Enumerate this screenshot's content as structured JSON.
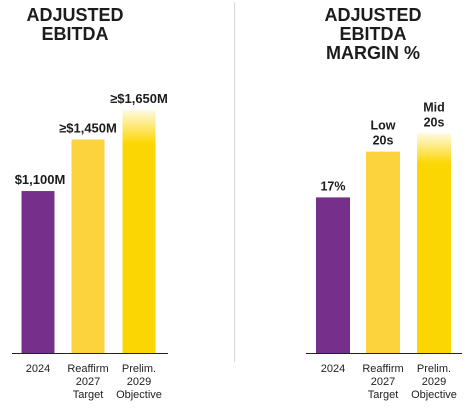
{
  "panels": [
    {
      "title_line1": "ADJUSTED",
      "title_line2": "EBITDA",
      "title_line3": ""
    },
    {
      "title_line1": "ADJUSTED",
      "title_line2": "EBITDA",
      "title_line3": "MARGIN %"
    }
  ],
  "colors": {
    "actual": "#76308b",
    "target": "#fdd33d",
    "objective": "#fcd600",
    "axis": "#222222"
  },
  "chart_data": [
    {
      "type": "bar",
      "title": "ADJUSTED EBITDA",
      "categories": [
        [
          "2024"
        ],
        [
          "Reaffirm",
          "2027",
          "Target"
        ],
        [
          "Prelim.",
          "2029",
          "Objective"
        ]
      ],
      "values": [
        1100,
        1450,
        1650
      ],
      "unit": "$M",
      "data_labels": [
        [
          "$1,100M"
        ],
        [
          "≥$1,450M"
        ],
        [
          "≥$1,650M"
        ]
      ],
      "open_ended": [
        false,
        false,
        true
      ],
      "ylim": [
        0,
        1800
      ],
      "grid": false,
      "legend": "none"
    },
    {
      "type": "bar",
      "title": "ADJUSTED EBITDA MARGIN %",
      "categories": [
        [
          "2024"
        ],
        [
          "Reaffirm",
          "2027",
          "Target"
        ],
        [
          "Prelim.",
          "2029",
          "Objective"
        ]
      ],
      "values": [
        17,
        22,
        24
      ],
      "unit": "%",
      "data_labels": [
        [
          "17%"
        ],
        [
          "Low",
          "20s"
        ],
        [
          "Mid",
          "20s"
        ]
      ],
      "open_ended": [
        false,
        false,
        true
      ],
      "ylim": [
        0,
        26
      ],
      "grid": false,
      "legend": "none"
    }
  ]
}
